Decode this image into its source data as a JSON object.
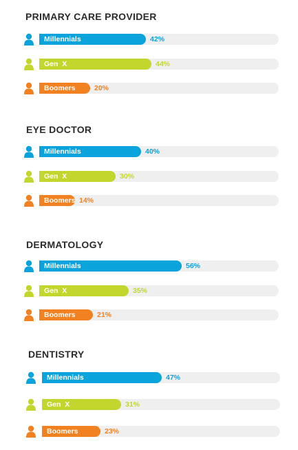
{
  "colors": {
    "millennials": "#0ba3dc",
    "genx": "#c3d62e",
    "boomers": "#f28121",
    "track": "#efefef"
  },
  "icon": "person-icon",
  "chart_data": [
    {
      "type": "bar",
      "title": "PRIMARY CARE PROVIDER",
      "categories": [
        "Millennials",
        "Gen  X",
        "Boomers"
      ],
      "values": [
        42,
        44,
        20
      ],
      "value_labels": [
        "42%",
        "44%",
        "20%"
      ],
      "unit": "%",
      "ylim": [
        0,
        100
      ]
    },
    {
      "type": "bar",
      "title": "EYE DOCTOR",
      "categories": [
        "Millennials",
        "Gen  X",
        "Boomers"
      ],
      "values": [
        40,
        30,
        14
      ],
      "value_labels": [
        "40%",
        "30%",
        "14%"
      ],
      "unit": "%",
      "ylim": [
        0,
        100
      ]
    },
    {
      "type": "bar",
      "title": "DERMATOLOGY",
      "categories": [
        "Millennials",
        "Gen  X",
        "Boomers"
      ],
      "values": [
        56,
        35,
        21
      ],
      "value_labels": [
        "56%",
        "35%",
        "21%"
      ],
      "unit": "%",
      "ylim": [
        0,
        100
      ]
    },
    {
      "type": "bar",
      "title": "DENTISTRY",
      "categories": [
        "Millennials",
        "Gen  X",
        "Boomers"
      ],
      "values": [
        47,
        31,
        23
      ],
      "value_labels": [
        "47%",
        "31%",
        "23%"
      ],
      "unit": "%",
      "ylim": [
        0,
        100
      ]
    }
  ]
}
